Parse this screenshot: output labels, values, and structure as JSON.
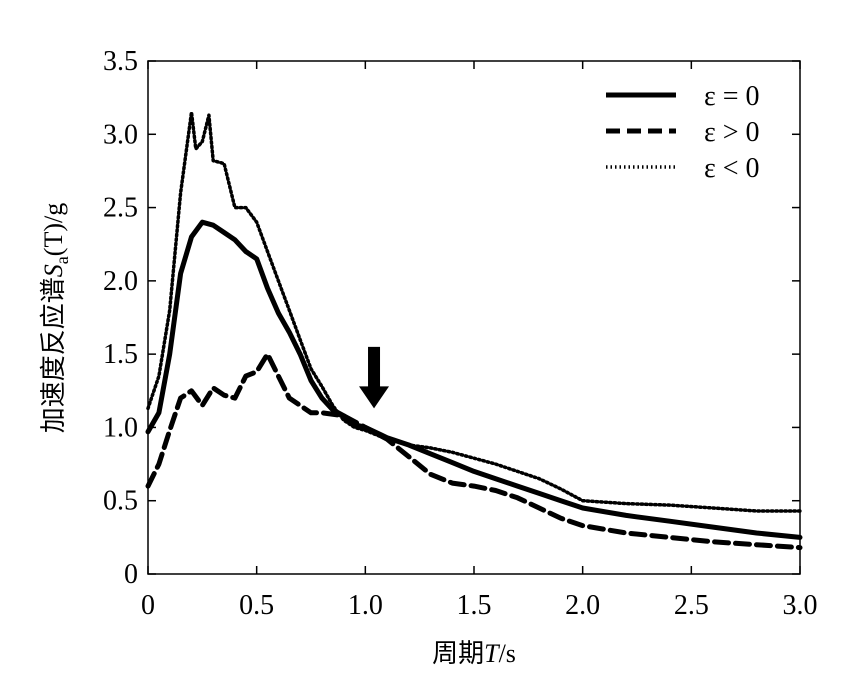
{
  "chart_data": {
    "type": "line",
    "title": "",
    "xlabel_prefix": "周期",
    "xlabel_var": "T",
    "xlabel_suffix": "/s",
    "ylabel_prefix": "加速度反应谱",
    "ylabel_var": "S",
    "ylabel_sub": "a",
    "ylabel_suffix": "(T)/g",
    "xlim": [
      0,
      3.0
    ],
    "ylim": [
      0,
      3.5
    ],
    "x_ticks": [
      "0",
      "0.5",
      "1.0",
      "1.5",
      "2.0",
      "2.5",
      "3.0"
    ],
    "y_ticks": [
      "0",
      "0.5",
      "1.0",
      "1.5",
      "2.0",
      "2.5",
      "3.0",
      "3.5"
    ],
    "grid": false,
    "legend_position": "top-right",
    "annotation": {
      "type": "down-arrow",
      "x": 1.04,
      "y_tip": 1.13,
      "y_tail": 1.55
    },
    "series": [
      {
        "name": "ε = 0",
        "style": "solid",
        "x": [
          0,
          0.05,
          0.1,
          0.15,
          0.2,
          0.25,
          0.3,
          0.35,
          0.4,
          0.45,
          0.5,
          0.55,
          0.6,
          0.65,
          0.7,
          0.75,
          0.8,
          0.85,
          0.9,
          0.95,
          1.0,
          1.1,
          1.2,
          1.3,
          1.4,
          1.5,
          1.6,
          1.7,
          1.8,
          1.9,
          2.0,
          2.2,
          2.4,
          2.6,
          2.8,
          3.0
        ],
        "y": [
          0.97,
          1.1,
          1.5,
          2.05,
          2.3,
          2.4,
          2.38,
          2.33,
          2.28,
          2.2,
          2.15,
          1.95,
          1.78,
          1.65,
          1.5,
          1.32,
          1.2,
          1.12,
          1.08,
          1.02,
          1.0,
          0.93,
          0.88,
          0.82,
          0.76,
          0.7,
          0.65,
          0.6,
          0.55,
          0.5,
          0.45,
          0.4,
          0.36,
          0.32,
          0.28,
          0.25
        ]
      },
      {
        "name": "ε > 0",
        "style": "dashed",
        "x": [
          0,
          0.05,
          0.1,
          0.15,
          0.2,
          0.25,
          0.3,
          0.35,
          0.4,
          0.45,
          0.5,
          0.55,
          0.6,
          0.65,
          0.7,
          0.75,
          0.8,
          0.9,
          1.0,
          1.1,
          1.2,
          1.3,
          1.4,
          1.5,
          1.6,
          1.7,
          1.8,
          1.9,
          2.0,
          2.2,
          2.4,
          2.6,
          2.8,
          3.0
        ],
        "y": [
          0.6,
          0.75,
          0.98,
          1.2,
          1.25,
          1.15,
          1.27,
          1.22,
          1.2,
          1.35,
          1.38,
          1.5,
          1.35,
          1.2,
          1.15,
          1.1,
          1.1,
          1.08,
          1.0,
          0.92,
          0.8,
          0.68,
          0.62,
          0.6,
          0.57,
          0.52,
          0.45,
          0.38,
          0.33,
          0.28,
          0.25,
          0.22,
          0.2,
          0.18
        ]
      },
      {
        "name": "ε < 0",
        "style": "dotted",
        "x": [
          0,
          0.05,
          0.1,
          0.15,
          0.2,
          0.22,
          0.25,
          0.28,
          0.3,
          0.35,
          0.4,
          0.45,
          0.5,
          0.55,
          0.6,
          0.65,
          0.7,
          0.75,
          0.8,
          0.85,
          0.9,
          0.95,
          1.0,
          1.1,
          1.2,
          1.3,
          1.4,
          1.5,
          1.6,
          1.7,
          1.8,
          1.9,
          2.0,
          2.2,
          2.4,
          2.6,
          2.8,
          3.0
        ],
        "y": [
          1.13,
          1.35,
          1.8,
          2.6,
          3.15,
          2.9,
          2.95,
          3.13,
          2.82,
          2.8,
          2.5,
          2.5,
          2.4,
          2.2,
          2.0,
          1.8,
          1.6,
          1.4,
          1.28,
          1.15,
          1.05,
          1.0,
          0.98,
          0.92,
          0.88,
          0.86,
          0.83,
          0.79,
          0.75,
          0.7,
          0.65,
          0.58,
          0.5,
          0.48,
          0.47,
          0.45,
          0.43,
          0.43
        ]
      }
    ]
  }
}
